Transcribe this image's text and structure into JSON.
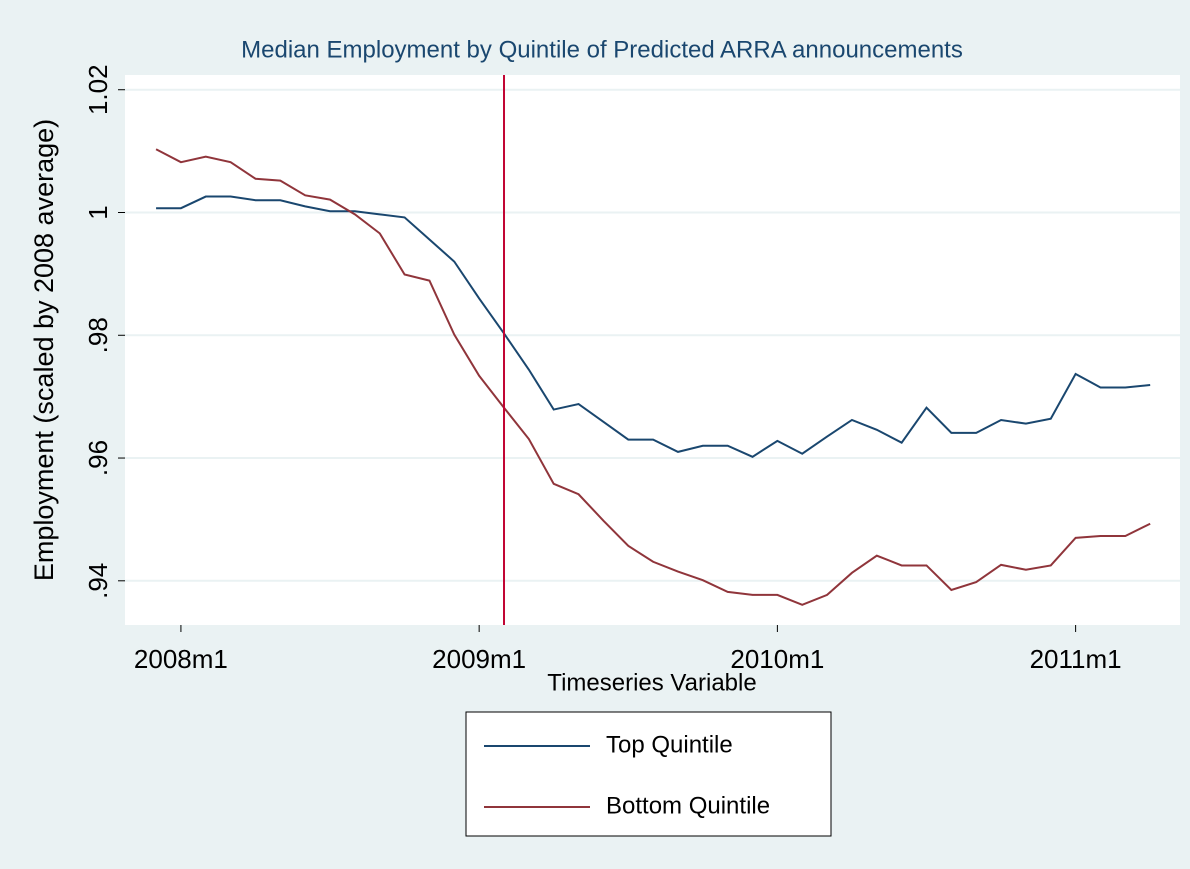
{
  "chart_data": {
    "type": "line",
    "title": "Median Employment by Quintile of Predicted ARRA announcements",
    "x_label": "Timeseries Variable",
    "y_label": "Employment (scaled by 2008 average)",
    "x": [
      575,
      576,
      577,
      578,
      579,
      580,
      581,
      582,
      583,
      584,
      585,
      586,
      587,
      588,
      589,
      590,
      591,
      592,
      593,
      594,
      595,
      596,
      597,
      598,
      599,
      600,
      601,
      602,
      603,
      604,
      605,
      606,
      607,
      608,
      609,
      610,
      611,
      612,
      613,
      614,
      615
    ],
    "series": [
      {
        "name": "Top Quintile",
        "color": "#1a476f",
        "values": [
          1.0007,
          1.0007,
          1.0026,
          1.0026,
          1.002,
          1.002,
          1.001,
          1.0002,
          1.0002,
          0.9997,
          0.9992,
          0.9956,
          0.992,
          0.986,
          0.9803,
          0.9744,
          0.9679,
          0.9688,
          0.9659,
          0.963,
          0.963,
          0.961,
          0.962,
          0.962,
          0.9602,
          0.9628,
          0.9607,
          0.9635,
          0.9662,
          0.9646,
          0.9625,
          0.9682,
          0.9641,
          0.9641,
          0.9662,
          0.9656,
          0.9664,
          0.9737,
          0.9715,
          0.9715,
          0.9719
        ]
      },
      {
        "name": "Bottom Quintile",
        "color": "#90353b",
        "values": [
          1.0103,
          1.0082,
          1.0091,
          1.0082,
          1.0055,
          1.0052,
          1.0028,
          1.0021,
          0.9997,
          0.9966,
          0.9899,
          0.9889,
          0.9801,
          0.9734,
          0.9682,
          0.9631,
          0.9558,
          0.9541,
          0.9498,
          0.9457,
          0.9431,
          0.9415,
          0.9401,
          0.9382,
          0.9377,
          0.9377,
          0.9361,
          0.9377,
          0.9413,
          0.9441,
          0.9425,
          0.9425,
          0.9385,
          0.9398,
          0.9426,
          0.9418,
          0.9425,
          0.947,
          0.9473,
          0.9473,
          0.9493
        ]
      }
    ],
    "xlim": [
      573.75,
      616.2
    ],
    "xticks": [
      {
        "value": 576,
        "label": "2008m1"
      },
      {
        "value": 588,
        "label": "2009m1"
      },
      {
        "value": 600,
        "label": "2010m1"
      },
      {
        "value": 612,
        "label": "2011m1"
      }
    ],
    "ylim": [
      0.9328,
      1.0224
    ],
    "yticks": [
      {
        "value": 0.94,
        "label": ".94"
      },
      {
        "value": 0.96,
        "label": ".96"
      },
      {
        "value": 0.98,
        "label": ".98"
      },
      1,
      1.02
    ],
    "grid": true,
    "vline": {
      "x": 589,
      "color": "#c10534"
    },
    "legend": "bottom"
  }
}
